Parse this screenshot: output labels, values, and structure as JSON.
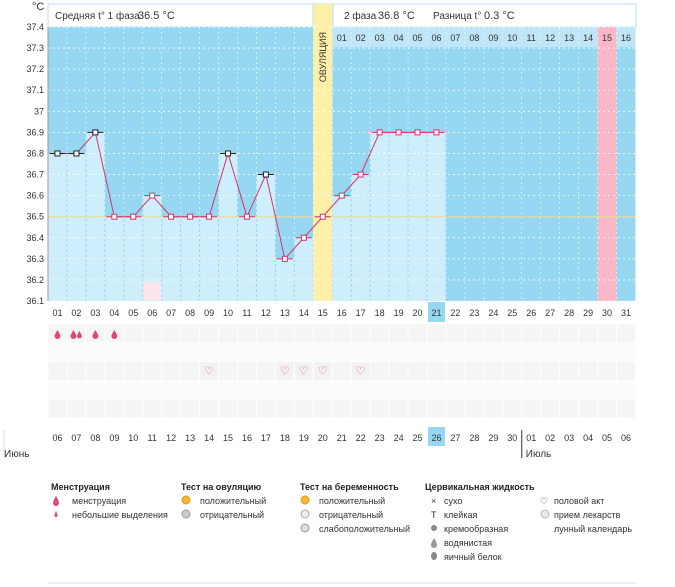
{
  "header": {
    "unit": "°C",
    "phase1_label": "Средняя t° 1 фаза",
    "phase1_value": "36.5 °C",
    "phase2_label": "2 фаза",
    "phase2_value": "36.8 °C",
    "diff_label": "Разница t°",
    "diff_value": "0.3 °C"
  },
  "colors": {
    "plot_bg": "#96d7f2",
    "bar": "#cfeefb",
    "ovulation": "#fff0a8",
    "pink_col": "#f9b7c8",
    "line": "#d6336c",
    "today": "#96d7f2",
    "coverline": "#e8d98a"
  },
  "chart_data": {
    "type": "line",
    "ylim": [
      36.1,
      37.4
    ],
    "yticks": [
      "37.4",
      "37.3",
      "37.2",
      "37.1",
      "37",
      "36.9",
      "36.8",
      "36.7",
      "36.6",
      "36.5",
      "36.4",
      "36.3",
      "36.2",
      "36.1"
    ],
    "cycle_days": [
      "01",
      "02",
      "03",
      "04",
      "05",
      "06",
      "07",
      "08",
      "09",
      "10",
      "11",
      "12",
      "13",
      "14",
      "15",
      "16",
      "17",
      "18",
      "19",
      "20",
      "21",
      "22",
      "23",
      "24",
      "25",
      "26",
      "27",
      "28",
      "29",
      "30",
      "31"
    ],
    "temperatures": [
      36.8,
      36.8,
      36.9,
      36.5,
      36.5,
      36.6,
      36.5,
      36.5,
      36.5,
      36.8,
      36.5,
      36.7,
      36.3,
      36.4,
      36.5,
      36.6,
      36.7,
      36.9,
      36.9,
      36.9,
      36.9
    ],
    "marker_black": [
      1,
      2,
      3,
      10,
      12
    ],
    "coverline": 36.5,
    "ovulation_day": 15,
    "ovulation_label": "ОВУЛЯЦИЯ",
    "today_day": 21,
    "phase2_days": [
      "01",
      "02",
      "03",
      "04",
      "05",
      "06",
      "07",
      "08",
      "09",
      "10",
      "11",
      "12",
      "13",
      "14",
      "15",
      "16"
    ],
    "phase2_highlight": "15",
    "calendar_dates": [
      "06",
      "07",
      "08",
      "09",
      "10",
      "11",
      "12",
      "13",
      "14",
      "15",
      "16",
      "17",
      "18",
      "19",
      "20",
      "21",
      "22",
      "23",
      "24",
      "25",
      "26",
      "27",
      "28",
      "29",
      "30",
      "01",
      "02",
      "03",
      "04",
      "05",
      "06"
    ],
    "red_dates_idx": [
      2,
      3,
      9,
      10,
      16,
      17,
      23,
      24,
      30
    ],
    "today_date_idx": 20,
    "month_labels": [
      "Июнь",
      "Июль"
    ],
    "moon_day": 6,
    "menstruation": [
      {
        "day": 1,
        "drops": 1
      },
      {
        "day": 2,
        "drops": 2
      },
      {
        "day": 3,
        "drops": 1
      },
      {
        "day": 4,
        "drops": 1
      }
    ],
    "intercourse_days": [
      9,
      13,
      14,
      15,
      17
    ]
  },
  "legend": {
    "menstruation": {
      "title": "Менструация",
      "items": [
        "менструация",
        "небольшие выделения"
      ]
    },
    "ovulation_test": {
      "title": "Тест на овуляцию",
      "items": [
        "положительный",
        "отрицательный"
      ]
    },
    "pregnancy_test": {
      "title": "Тест на беременность",
      "items": [
        "положительный",
        "отрицательный",
        "слабоположительный"
      ]
    },
    "cervical_fluid": {
      "title": "Цервикальная жидкость",
      "items": [
        "сухо",
        "клейкая",
        "кремообразная",
        "водянистая",
        "яичный белок"
      ]
    },
    "other": {
      "items": [
        "половой акт",
        "прием лекарств",
        "лунный календарь"
      ]
    }
  }
}
